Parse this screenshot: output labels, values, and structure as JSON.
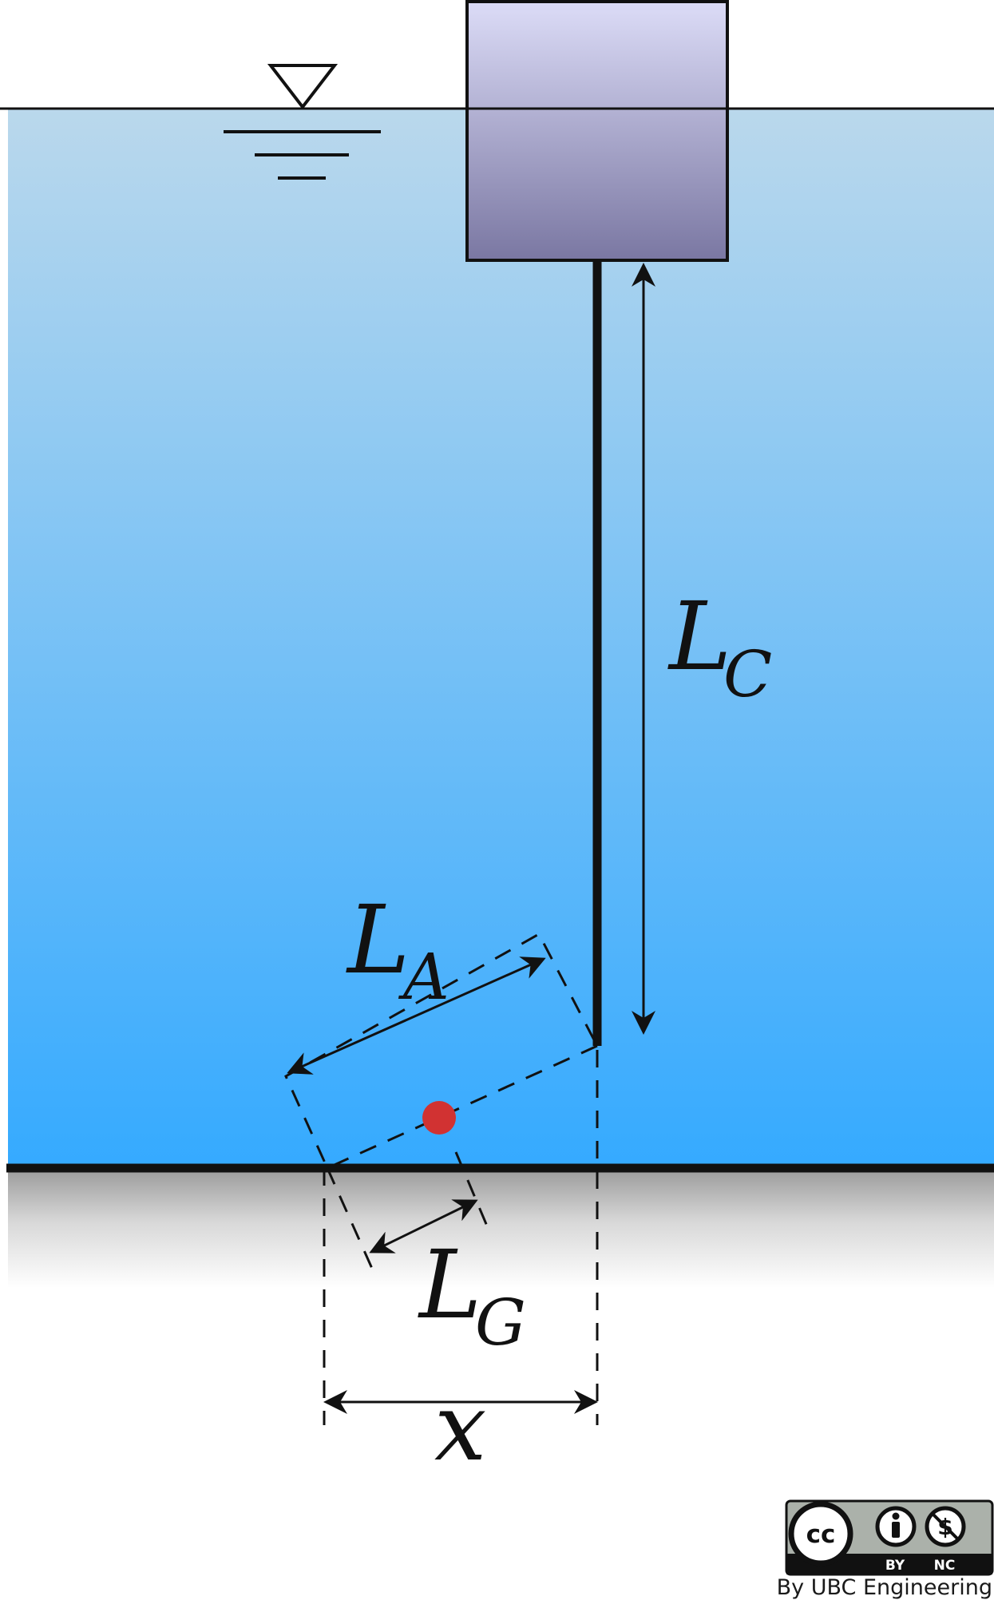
{
  "labels": {
    "lc_main": "L",
    "lc_sub": "C",
    "la_main": "L",
    "la_sub": "A",
    "lg_main": "L",
    "lg_sub": "G",
    "x": "x"
  },
  "license": {
    "cc": "cc",
    "by": "BY",
    "nc": "NC",
    "credit": "By UBC Engineering"
  },
  "colors": {
    "water_top": "#bad8ec",
    "water_bottom": "#35aaff",
    "float_top": "#dcdcf7",
    "float_bottom": "#7a77a2",
    "center_of_gravity": "#d13232",
    "line": "#111111"
  },
  "icons": {
    "water_level": "water-surface-symbol",
    "by": "person-icon",
    "nc": "no-dollar-icon"
  }
}
